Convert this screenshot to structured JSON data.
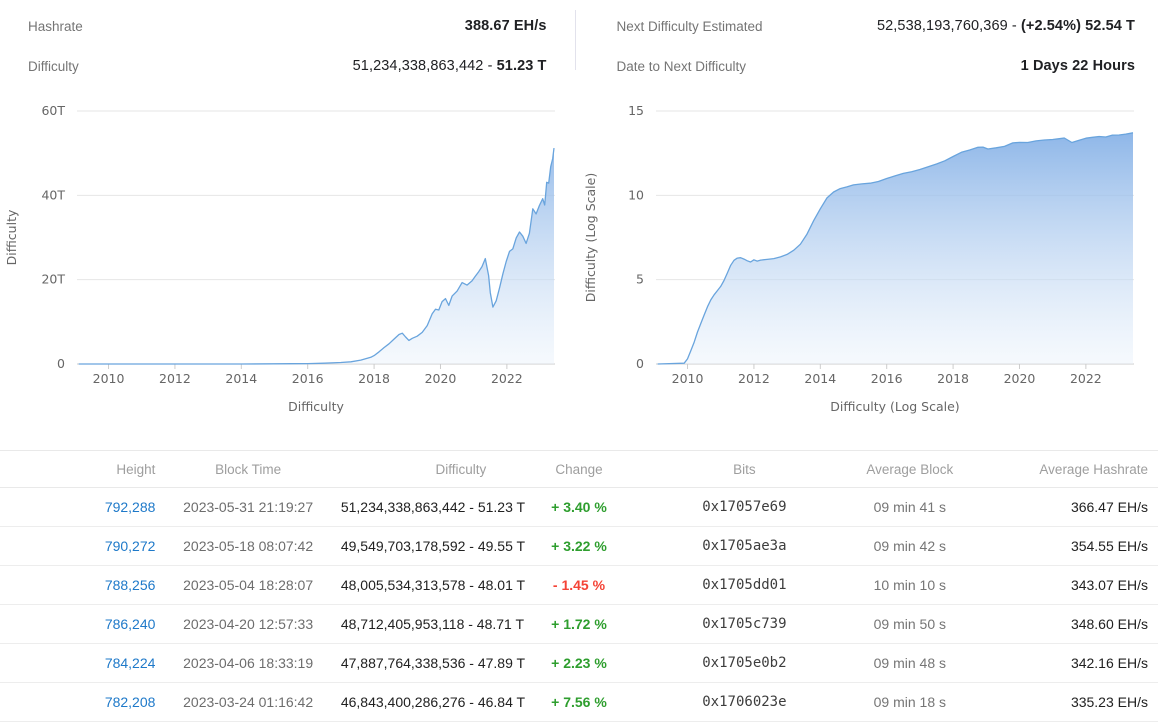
{
  "stats": {
    "hashrate": {
      "label": "Hashrate",
      "value_prefix": "",
      "value_bold": "388.67 EH/s"
    },
    "difficulty": {
      "label": "Difficulty",
      "value_prefix": "51,234,338,863,442 - ",
      "value_bold": "51.23 T"
    },
    "next_difficulty": {
      "label": "Next Difficulty Estimated",
      "value_prefix": "52,538,193,760,369 - ",
      "value_bold": "(+2.54%) 52.54 T"
    },
    "date_to_next": {
      "label": "Date to Next Difficulty",
      "value_prefix": "",
      "value_bold": "1 Days 22 Hours"
    }
  },
  "colors": {
    "link_blue": "#1e79c9",
    "positive_green": "#2e9e2e",
    "negative_red": "#f44336",
    "chart_line": "#69a4dd",
    "chart_fill_top": "#79a9e4",
    "chart_fill_bottom": "#eaf2fb",
    "gridline": "#e6e6e6"
  },
  "chart_data": [
    {
      "id": "difficulty-linear",
      "type": "area",
      "title": "",
      "xlabel": "Difficulty",
      "ylabel": "Difficulty",
      "xlim": [
        2009.05,
        2023.45
      ],
      "ylim": [
        0,
        60
      ],
      "x_ticks": [
        2010,
        2012,
        2014,
        2016,
        2018,
        2020,
        2022
      ],
      "y_ticks": [
        {
          "value": 0,
          "label": "0"
        },
        {
          "value": 20,
          "label": "20T"
        },
        {
          "value": 40,
          "label": "40T"
        },
        {
          "value": 60,
          "label": "60T"
        }
      ],
      "legend": "off",
      "grid": "horizontal",
      "series": [
        {
          "name": "Difficulty (T)",
          "points": [
            [
              2009.1,
              0
            ],
            [
              2010,
              0
            ],
            [
              2011,
              0
            ],
            [
              2012,
              0
            ],
            [
              2013,
              0
            ],
            [
              2014,
              0.002
            ],
            [
              2015,
              0.045
            ],
            [
              2015.5,
              0.06
            ],
            [
              2016,
              0.1
            ],
            [
              2016.5,
              0.2
            ],
            [
              2017,
              0.35
            ],
            [
              2017.3,
              0.52
            ],
            [
              2017.6,
              0.92
            ],
            [
              2017.9,
              1.6
            ],
            [
              2018.0,
              2.0
            ],
            [
              2018.15,
              2.9
            ],
            [
              2018.3,
              3.9
            ],
            [
              2018.45,
              4.8
            ],
            [
              2018.6,
              5.9
            ],
            [
              2018.75,
              7.0
            ],
            [
              2018.85,
              7.3
            ],
            [
              2018.95,
              6.4
            ],
            [
              2019.05,
              5.6
            ],
            [
              2019.15,
              6.1
            ],
            [
              2019.3,
              6.6
            ],
            [
              2019.45,
              7.5
            ],
            [
              2019.6,
              9.1
            ],
            [
              2019.75,
              11.9
            ],
            [
              2019.85,
              13.0
            ],
            [
              2019.95,
              12.8
            ],
            [
              2020.05,
              14.8
            ],
            [
              2020.15,
              15.5
            ],
            [
              2020.25,
              13.9
            ],
            [
              2020.35,
              16.1
            ],
            [
              2020.5,
              17.3
            ],
            [
              2020.65,
              19.3
            ],
            [
              2020.8,
              18.7
            ],
            [
              2020.95,
              19.7
            ],
            [
              2021.05,
              20.8
            ],
            [
              2021.15,
              21.9
            ],
            [
              2021.25,
              23.1
            ],
            [
              2021.35,
              25.0
            ],
            [
              2021.45,
              21.0
            ],
            [
              2021.5,
              16.9
            ],
            [
              2021.58,
              13.5
            ],
            [
              2021.68,
              15.0
            ],
            [
              2021.78,
              18.1
            ],
            [
              2021.88,
              21.4
            ],
            [
              2021.98,
              24.3
            ],
            [
              2022.08,
              26.7
            ],
            [
              2022.18,
              27.3
            ],
            [
              2022.28,
              29.9
            ],
            [
              2022.38,
              31.3
            ],
            [
              2022.48,
              30.3
            ],
            [
              2022.58,
              28.6
            ],
            [
              2022.68,
              31.0
            ],
            [
              2022.78,
              36.8
            ],
            [
              2022.88,
              35.6
            ],
            [
              2022.98,
              37.6
            ],
            [
              2023.08,
              39.2
            ],
            [
              2023.14,
              37.7
            ],
            [
              2023.2,
              43.1
            ],
            [
              2023.26,
              42.9
            ],
            [
              2023.32,
              46.8
            ],
            [
              2023.38,
              48.7
            ],
            [
              2023.42,
              51.2
            ]
          ]
        }
      ]
    },
    {
      "id": "difficulty-log",
      "type": "area",
      "title": "",
      "xlabel": "Difficulty (Log Scale)",
      "ylabel": "Difficulty (Log Scale)",
      "xlim": [
        2009.05,
        2023.45
      ],
      "ylim": [
        0,
        15
      ],
      "x_ticks": [
        2010,
        2012,
        2014,
        2016,
        2018,
        2020,
        2022
      ],
      "y_ticks": [
        {
          "value": 0,
          "label": "0"
        },
        {
          "value": 5,
          "label": "5"
        },
        {
          "value": 10,
          "label": "10"
        },
        {
          "value": 15,
          "label": "15"
        }
      ],
      "legend": "off",
      "grid": "horizontal",
      "series": [
        {
          "name": "log10(Difficulty)",
          "points": [
            [
              2009.1,
              0
            ],
            [
              2009.9,
              0.05
            ],
            [
              2010.0,
              0.3
            ],
            [
              2010.1,
              0.8
            ],
            [
              2010.2,
              1.3
            ],
            [
              2010.3,
              1.9
            ],
            [
              2010.4,
              2.4
            ],
            [
              2010.5,
              2.9
            ],
            [
              2010.6,
              3.4
            ],
            [
              2010.7,
              3.8
            ],
            [
              2010.8,
              4.1
            ],
            [
              2010.9,
              4.35
            ],
            [
              2011.0,
              4.6
            ],
            [
              2011.1,
              4.95
            ],
            [
              2011.2,
              5.4
            ],
            [
              2011.3,
              5.85
            ],
            [
              2011.4,
              6.15
            ],
            [
              2011.5,
              6.28
            ],
            [
              2011.6,
              6.3
            ],
            [
              2011.7,
              6.22
            ],
            [
              2011.8,
              6.12
            ],
            [
              2011.9,
              6.05
            ],
            [
              2012.0,
              6.18
            ],
            [
              2012.1,
              6.1
            ],
            [
              2012.2,
              6.16
            ],
            [
              2012.4,
              6.2
            ],
            [
              2012.6,
              6.25
            ],
            [
              2012.8,
              6.35
            ],
            [
              2013.0,
              6.5
            ],
            [
              2013.2,
              6.75
            ],
            [
              2013.4,
              7.1
            ],
            [
              2013.6,
              7.7
            ],
            [
              2013.8,
              8.5
            ],
            [
              2014.0,
              9.2
            ],
            [
              2014.2,
              9.85
            ],
            [
              2014.4,
              10.2
            ],
            [
              2014.6,
              10.4
            ],
            [
              2014.8,
              10.5
            ],
            [
              2015.0,
              10.62
            ],
            [
              2015.25,
              10.68
            ],
            [
              2015.5,
              10.72
            ],
            [
              2015.75,
              10.82
            ],
            [
              2016.0,
              11.0
            ],
            [
              2016.25,
              11.15
            ],
            [
              2016.5,
              11.3
            ],
            [
              2016.75,
              11.4
            ],
            [
              2017.0,
              11.53
            ],
            [
              2017.25,
              11.7
            ],
            [
              2017.5,
              11.86
            ],
            [
              2017.75,
              12.05
            ],
            [
              2018.0,
              12.3
            ],
            [
              2018.25,
              12.55
            ],
            [
              2018.5,
              12.69
            ],
            [
              2018.75,
              12.85
            ],
            [
              2018.9,
              12.86
            ],
            [
              2019.05,
              12.75
            ],
            [
              2019.3,
              12.82
            ],
            [
              2019.55,
              12.9
            ],
            [
              2019.8,
              13.11
            ],
            [
              2020.0,
              13.14
            ],
            [
              2020.25,
              13.13
            ],
            [
              2020.5,
              13.23
            ],
            [
              2020.75,
              13.28
            ],
            [
              2021.0,
              13.31
            ],
            [
              2021.2,
              13.36
            ],
            [
              2021.35,
              13.4
            ],
            [
              2021.58,
              13.13
            ],
            [
              2021.8,
              13.26
            ],
            [
              2022.0,
              13.39
            ],
            [
              2022.2,
              13.44
            ],
            [
              2022.4,
              13.49
            ],
            [
              2022.6,
              13.46
            ],
            [
              2022.8,
              13.57
            ],
            [
              2023.0,
              13.58
            ],
            [
              2023.2,
              13.63
            ],
            [
              2023.42,
              13.71
            ]
          ]
        }
      ]
    }
  ],
  "table": {
    "columns": [
      "Height",
      "Block Time",
      "Difficulty",
      "Change",
      "Bits",
      "Average Block",
      "Average Hashrate"
    ],
    "rows": [
      [
        "792,288",
        "2023-05-31 21:19:27",
        "51,234,338,863,442 - 51.23 T",
        "+ 3.40 %",
        "0x17057e69",
        "09 min 41 s",
        "366.47 EH/s"
      ],
      [
        "790,272",
        "2023-05-18 08:07:42",
        "49,549,703,178,592 - 49.55 T",
        "+ 3.22 %",
        "0x1705ae3a",
        "09 min 42 s",
        "354.55 EH/s"
      ],
      [
        "788,256",
        "2023-05-04 18:28:07",
        "48,005,534,313,578 - 48.01 T",
        "- 1.45 %",
        "0x1705dd01",
        "10 min 10 s",
        "343.07 EH/s"
      ],
      [
        "786,240",
        "2023-04-20 12:57:33",
        "48,712,405,953,118 - 48.71 T",
        "+ 1.72 %",
        "0x1705c739",
        "09 min 50 s",
        "348.60 EH/s"
      ],
      [
        "784,224",
        "2023-04-06 18:33:19",
        "47,887,764,338,536 - 47.89 T",
        "+ 2.23 %",
        "0x1705e0b2",
        "09 min 48 s",
        "342.16 EH/s"
      ],
      [
        "782,208",
        "2023-03-24 01:16:42",
        "46,843,400,286,276 - 46.84 T",
        "+ 7.56 %",
        "0x1706023e",
        "09 min 18 s",
        "335.23 EH/s"
      ]
    ]
  }
}
